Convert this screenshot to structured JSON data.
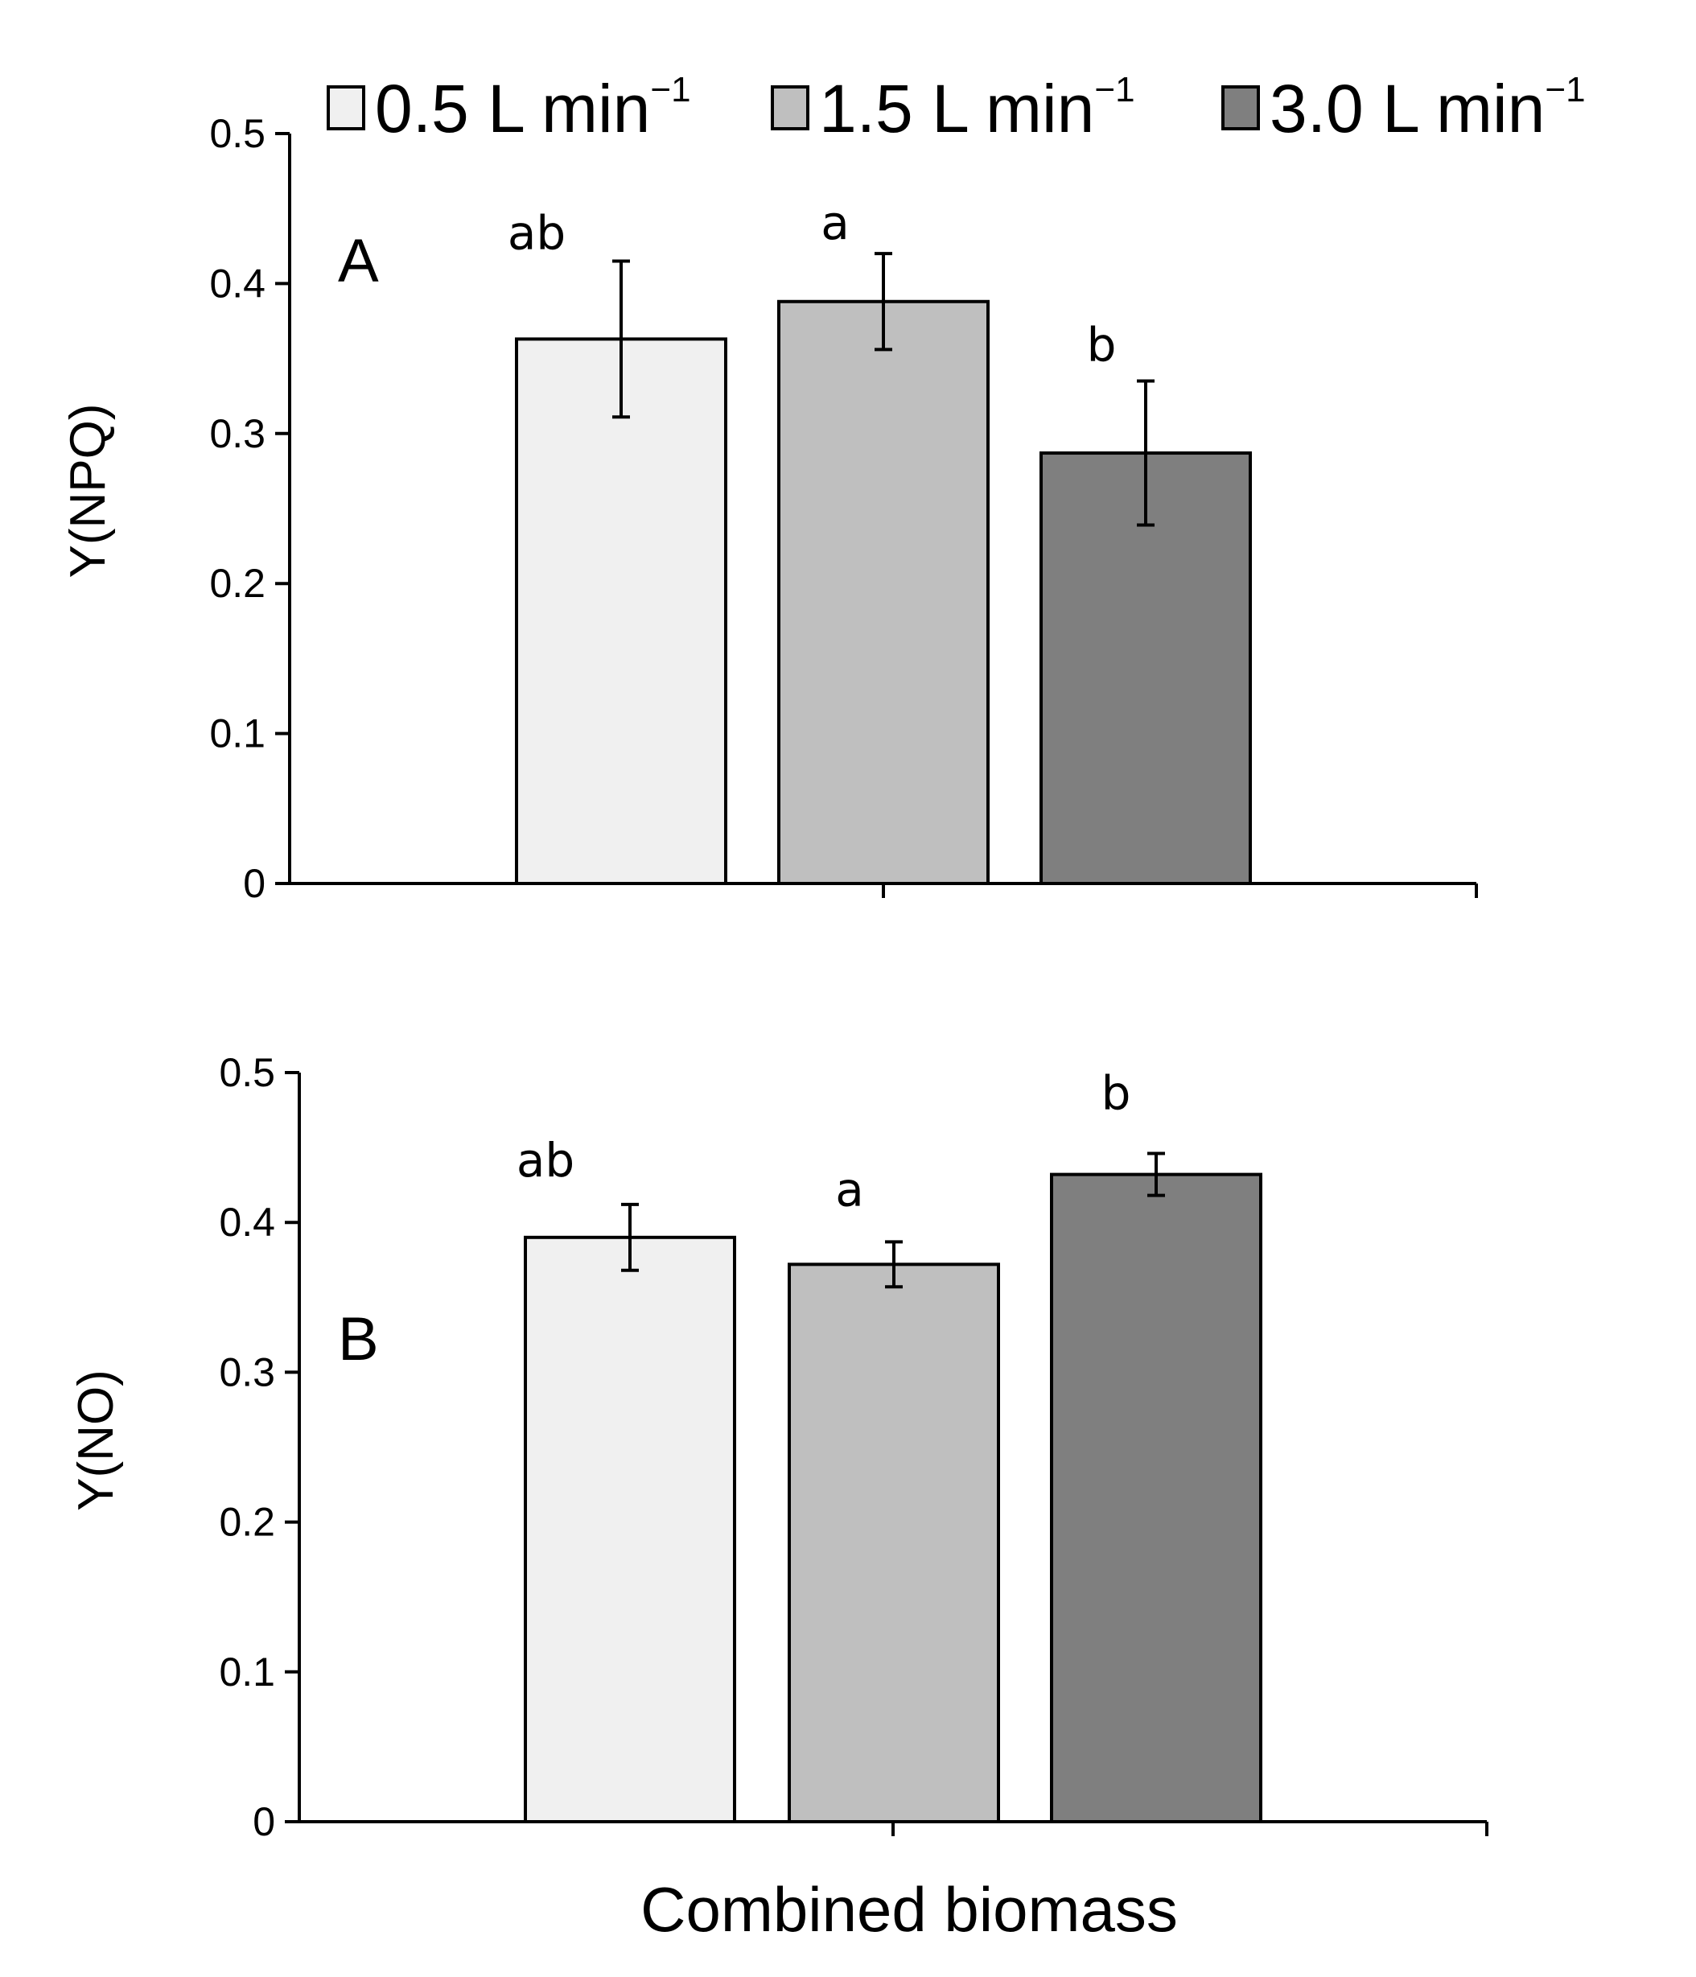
{
  "legend": [
    {
      "label": "0.5 L min",
      "sup": "−1",
      "color": "#f0f0f0"
    },
    {
      "label": "1.5 L min",
      "sup": "−1",
      "color": "#bfbfbf"
    },
    {
      "label": "3.0 L min",
      "sup": "−1",
      "color": "#7f7f7f"
    }
  ],
  "xlabel": "Combined biomass",
  "chart_data": [
    {
      "type": "bar",
      "panel": "A",
      "ylabel": "Y(NPQ)",
      "ylim": [
        0,
        0.5
      ],
      "yticks": [
        "0",
        "0.1",
        "0.2",
        "0.3",
        "0.4",
        "0.5"
      ],
      "categories": [
        "Combined biomass"
      ],
      "series": [
        {
          "name": "0.5 L min−1",
          "value": 0.363,
          "error": 0.052,
          "letter": "ab"
        },
        {
          "name": "1.5 L min−1",
          "value": 0.388,
          "error": 0.032,
          "letter": "a"
        },
        {
          "name": "3.0 L min−1",
          "value": 0.287,
          "error": 0.048,
          "letter": "b"
        }
      ]
    },
    {
      "type": "bar",
      "panel": "B",
      "ylabel": "Y(NO)",
      "ylim": [
        0,
        0.5
      ],
      "yticks": [
        "0",
        "0.1",
        "0.2",
        "0.3",
        "0.4",
        "0.5"
      ],
      "categories": [
        "Combined biomass"
      ],
      "series": [
        {
          "name": "0.5 L min−1",
          "value": 0.39,
          "error": 0.022,
          "letter": "ab"
        },
        {
          "name": "1.5 L min−1",
          "value": 0.372,
          "error": 0.015,
          "letter": "a"
        },
        {
          "name": "3.0 L min−1",
          "value": 0.432,
          "error": 0.014,
          "letter": "b"
        }
      ]
    }
  ]
}
